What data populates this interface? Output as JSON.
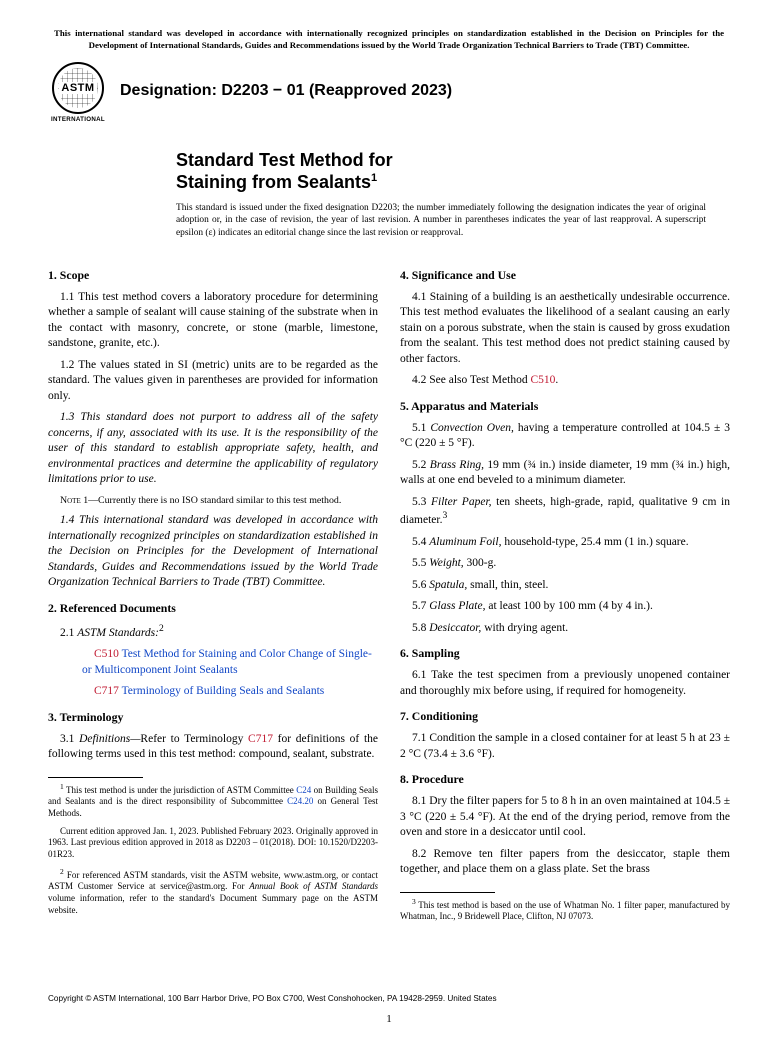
{
  "headnote": "This international standard was developed in accordance with internationally recognized principles on standardization established in the Decision on Principles for the Development of International Standards, Guides and Recommendations issued by the World Trade Organization Technical Barriers to Trade (TBT) Committee.",
  "logo_text": "ASTM",
  "logo_sub": "INTERNATIONAL",
  "designation": "Designation: D2203 − 01 (Reapproved 2023)",
  "title_line1": "Standard Test Method for",
  "title_line2_plain": "Staining from Sealants",
  "title_sup": "1",
  "issuance": "This standard is issued under the fixed designation D2203; the number immediately following the designation indicates the year of original adoption or, in the case of revision, the year of last revision. A number in parentheses indicates the year of last reapproval. A superscript epsilon (ε) indicates an editorial change since the last revision or reapproval.",
  "left": {
    "s1_head": "1.  Scope",
    "p1_1": "1.1 This test method covers a laboratory procedure for determining whether a sample of sealant will cause staining of the substrate when in the contact with masonry, concrete, or stone (marble, limestone, sandstone, granite, etc.).",
    "p1_2": "1.2 The values stated in SI (metric) units are to be regarded as the standard. The values given in parentheses are provided for information only.",
    "p1_3": "1.3 This standard does not purport to address all of the safety concerns, if any, associated with its use. It is the responsibility of the user of this standard to establish appropriate safety, health, and environmental practices and determine the applicability of regulatory limitations prior to use.",
    "note1": " 1—Currently there is no ISO standard similar to this test method.",
    "note1_label": "Note",
    "p1_4": "1.4 This international standard was developed in accordance with internationally recognized principles on standardization established in the Decision on Principles for the Development of International Standards, Guides and Recommendations issued by the World Trade Organization Technical Barriers to Trade (TBT) Committee.",
    "s2_head": "2.  Referenced Documents",
    "p2_1_pre": "2.1 ",
    "p2_1_label": "ASTM Standards:",
    "p2_1_sup": "2",
    "ref1_code": "C510",
    "ref1_text": " Test Method for Staining and Color Change of Single- or Multicomponent Joint Sealants",
    "ref2_code": "C717",
    "ref2_text": " Terminology of Building Seals and Sealants",
    "s3_head": "3.  Terminology",
    "p3_1a": "3.1 ",
    "p3_1b": "Definitions—",
    "p3_1c": "Refer to Terminology ",
    "p3_1d": "C717",
    "p3_1e": " for definitions of the following terms used in this test method: compound, sealant, substrate.",
    "fn1_a": " This test method is under the jurisdiction of ASTM Committee ",
    "fn1_c24": "C24",
    "fn1_b": " on Building Seals and Sealants and is the direct responsibility of Subcommittee ",
    "fn1_c2420": "C24.20",
    "fn1_c": " on General Test Methods.",
    "fn1_d": "Current edition approved Jan. 1, 2023. Published February 2023. Originally approved in 1963. Last previous edition approved in 2018 as D2203 – 01(2018). DOI: 10.1520/D2203-01R23.",
    "fn2_a": " For referenced ASTM standards, visit the ASTM website, www.astm.org, or contact ASTM Customer Service at service@astm.org. For ",
    "fn2_b": "Annual Book of ASTM Standards",
    "fn2_c": " volume information, refer to the standard's Document Summary page on the ASTM website."
  },
  "right": {
    "s4_head": "4.  Significance and Use",
    "p4_1": "4.1 Staining of a building is an aesthetically undesirable occurrence. This test method evaluates the likelihood of a sealant causing an early stain on a porous substrate, when the stain is caused by gross exudation from the sealant. This test method does not predict staining caused by other factors.",
    "p4_2a": "4.2 See also Test Method ",
    "p4_2b": "C510",
    "p4_2c": ".",
    "s5_head": "5.  Apparatus and Materials",
    "p5_1a": "5.1 ",
    "p5_1b": "Convection Oven,",
    "p5_1c": " having a temperature controlled at 104.5 ± 3 °C (220 ± 5 °F).",
    "p5_2a": "5.2 ",
    "p5_2b": "Brass Ring,",
    "p5_2c": " 19 mm (¾ in.) inside diameter, 19 mm (¾ in.) high, walls at one end beveled to a minimum diameter.",
    "p5_3a": "5.3 ",
    "p5_3b": "Filter Paper,",
    "p5_3c": " ten sheets, high-grade, rapid, qualitative 9 cm in diameter.",
    "p5_3sup": "3",
    "p5_4a": "5.4 ",
    "p5_4b": "Aluminum Foil,",
    "p5_4c": " household-type, 25.4 mm (1 in.) square.",
    "p5_5a": "5.5 ",
    "p5_5b": "Weight,",
    "p5_5c": " 300-g.",
    "p5_6a": "5.6 ",
    "p5_6b": "Spatula,",
    "p5_6c": " small, thin, steel.",
    "p5_7a": "5.7 ",
    "p5_7b": "Glass Plate,",
    "p5_7c": " at least 100 by 100 mm (4 by 4 in.).",
    "p5_8a": "5.8 ",
    "p5_8b": "Desiccator,",
    "p5_8c": " with drying agent.",
    "s6_head": "6.  Sampling",
    "p6_1": "6.1 Take the test specimen from a previously unopened container and thoroughly mix before using, if required for homogeneity.",
    "s7_head": "7.  Conditioning",
    "p7_1": "7.1 Condition the sample in a closed container for at least 5 h at 23 ± 2 °C (73.4 ± 3.6 °F).",
    "s8_head": "8.  Procedure",
    "p8_1": "8.1 Dry the filter papers for 5 to 8 h in an oven maintained at 104.5 ± 3 °C (220 ± 5.4 °F). At the end of the drying period, remove from the oven and store in a desiccator until cool.",
    "p8_2": "8.2 Remove ten filter papers from the desiccator, staple them together, and place them on a glass plate. Set the brass",
    "fn3": " This test method is based on the use of Whatman No. 1 filter paper, manufactured by Whatman, Inc., 9 Bridewell Place, Clifton, NJ 07073."
  },
  "copyright": "Copyright © ASTM International, 100 Barr Harbor Drive, PO Box C700, West Conshohocken, PA 19428-2959. United States",
  "page_number": "1"
}
